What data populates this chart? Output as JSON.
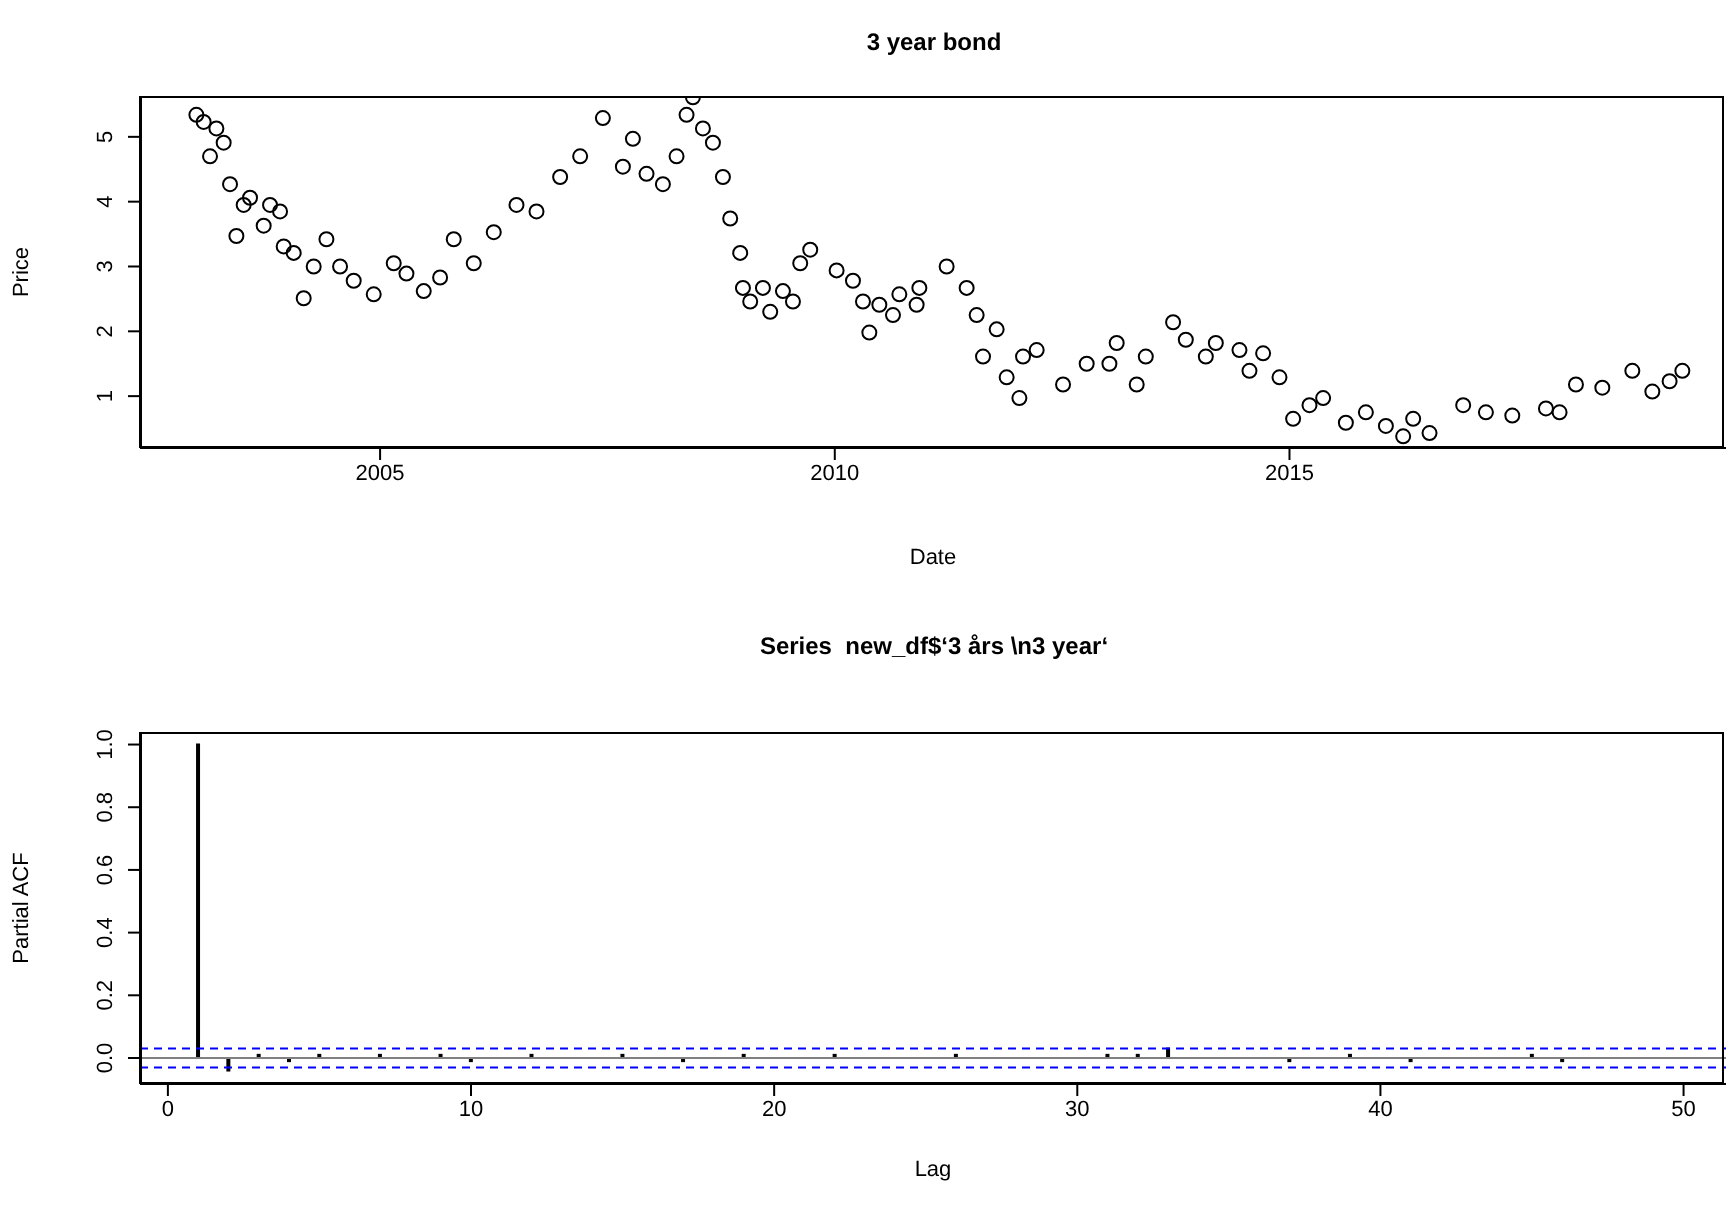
{
  "chart_data": [
    {
      "type": "scatter",
      "title": "3 year bond",
      "xlabel": "Date",
      "ylabel": "Price",
      "marker": "circle",
      "xlim": [
        2002.36,
        2019.8
      ],
      "xticks": [
        2005,
        2010,
        2015
      ],
      "ylim": [
        0.2,
        5.63
      ],
      "yticks": [
        1,
        2,
        3,
        4,
        5
      ],
      "series": [
        {
          "color": "#000000",
          "x": [
            2002.98,
            2003.06,
            2003.13,
            2003.2,
            2003.28,
            2003.35,
            2003.42,
            2003.5,
            2003.57,
            2003.72,
            2003.79,
            2003.9,
            2003.94,
            2004.05,
            2004.16,
            2004.27,
            2004.41,
            2004.56,
            2004.71,
            2004.93,
            2005.15,
            2005.29,
            2005.48,
            2005.66,
            2005.81,
            2006.03,
            2006.25,
            2006.5,
            2006.72,
            2006.98,
            2007.2,
            2007.45,
            2007.67,
            2007.78,
            2007.93,
            2008.11,
            2008.26,
            2008.37,
            2008.44,
            2008.55,
            2008.66,
            2008.77,
            2008.85,
            2008.96,
            2008.99,
            2009.07,
            2009.21,
            2009.29,
            2009.43,
            2009.54,
            2009.62,
            2009.73,
            2010.02,
            2010.2,
            2010.31,
            2010.38,
            2010.49,
            2010.64,
            2010.71,
            2010.9,
            2010.93,
            2011.23,
            2011.45,
            2011.56,
            2011.63,
            2011.78,
            2011.89,
            2012.03,
            2012.07,
            2012.22,
            2012.51,
            2012.77,
            2013.02,
            2013.1,
            2013.32,
            2013.42,
            2013.72,
            2013.86,
            2014.08,
            2014.19,
            2014.45,
            2014.56,
            2014.71,
            2014.89,
            2015.04,
            2015.22,
            2015.37,
            2015.62,
            2015.84,
            2016.06,
            2016.25,
            2016.36,
            2016.54,
            2016.91,
            2017.16,
            2017.45,
            2017.82,
            2017.97,
            2018.15,
            2018.44,
            2018.77,
            2018.99,
            2019.18,
            2019.32
          ],
          "values": [
            5.34,
            5.23,
            4.7,
            5.13,
            4.91,
            4.27,
            3.47,
            3.95,
            4.06,
            3.63,
            3.95,
            3.85,
            3.31,
            3.21,
            2.51,
            3.0,
            3.42,
            3.0,
            2.78,
            2.57,
            3.05,
            2.89,
            2.62,
            2.83,
            3.42,
            3.05,
            3.53,
            3.95,
            3.85,
            4.38,
            4.7,
            5.29,
            4.54,
            4.97,
            4.43,
            4.27,
            4.7,
            5.34,
            5.61,
            5.13,
            4.91,
            4.38,
            3.74,
            3.21,
            2.67,
            2.46,
            2.67,
            2.3,
            2.62,
            2.46,
            3.05,
            3.26,
            2.94,
            2.78,
            2.46,
            1.98,
            2.41,
            2.25,
            2.57,
            2.41,
            2.67,
            3.0,
            2.67,
            2.25,
            1.61,
            2.03,
            1.29,
            0.97,
            1.61,
            1.71,
            1.18,
            1.5,
            1.5,
            1.82,
            1.18,
            1.61,
            2.14,
            1.87,
            1.61,
            1.82,
            1.71,
            1.39,
            1.66,
            1.29,
            0.65,
            0.86,
            0.97,
            0.59,
            0.75,
            0.54,
            0.38,
            0.65,
            0.43,
            0.86,
            0.75,
            0.7,
            0.81,
            0.75,
            1.18,
            1.13,
            1.39,
            1.07,
            1.23,
            1.39
          ]
        }
      ]
    },
    {
      "type": "bar",
      "title": "Series  new_df$‘3 års \\n3 year‘",
      "xlabel": "Lag",
      "ylabel": "Partial ACF",
      "xlim": [
        -0.92,
        51.4
      ],
      "xticks": [
        0,
        10,
        20,
        30,
        40,
        50
      ],
      "ylim": [
        -0.083,
        1.04
      ],
      "yticks": [
        {
          "value": 0,
          "label": "0.0"
        },
        {
          "value": 0.2,
          "label": "0.2"
        },
        {
          "value": 0.4,
          "label": "0.4"
        },
        {
          "value": 0.6,
          "label": "0.6"
        },
        {
          "value": 0.8,
          "label": "0.8"
        },
        {
          "value": 1,
          "label": "1.0"
        }
      ],
      "x": [
        1,
        2,
        3,
        4,
        5,
        6,
        7,
        8,
        9,
        10,
        11,
        12,
        13,
        14,
        15,
        16,
        17,
        18,
        19,
        20,
        21,
        22,
        23,
        24,
        25,
        26,
        27,
        28,
        29,
        30,
        31,
        32,
        33,
        34,
        35,
        36,
        37,
        38,
        39,
        40,
        41,
        42,
        43,
        44,
        45,
        46,
        47,
        48,
        49,
        50
      ],
      "series": [
        {
          "color": "#000000",
          "values": [
            1.0,
            -0.04,
            0.01,
            -0.01,
            0.01,
            0.0,
            0.01,
            0.0,
            0.01,
            -0.01,
            0.0,
            0.01,
            0.0,
            0.0,
            0.01,
            0.0,
            -0.01,
            0.0,
            0.01,
            0.0,
            0.0,
            0.01,
            0.0,
            0.0,
            0.0,
            0.01,
            0.0,
            0.0,
            0.0,
            0.0,
            0.01,
            0.01,
            0.03,
            0.0,
            0.0,
            0.0,
            -0.01,
            0.0,
            0.01,
            0.0,
            -0.01,
            0.0,
            0.0,
            0.0,
            0.01,
            -0.01,
            0.0,
            0.0,
            0.0,
            0.0
          ]
        }
      ],
      "ref_lines": [
        {
          "axis": "y",
          "value": 0,
          "color": "#808080",
          "line_style": "solid"
        },
        {
          "axis": "y",
          "value": 0.03,
          "color": "#0000ff",
          "line_style": "dashed"
        },
        {
          "axis": "y",
          "value": -0.03,
          "color": "#0000ff",
          "line_style": "dashed"
        }
      ]
    }
  ]
}
